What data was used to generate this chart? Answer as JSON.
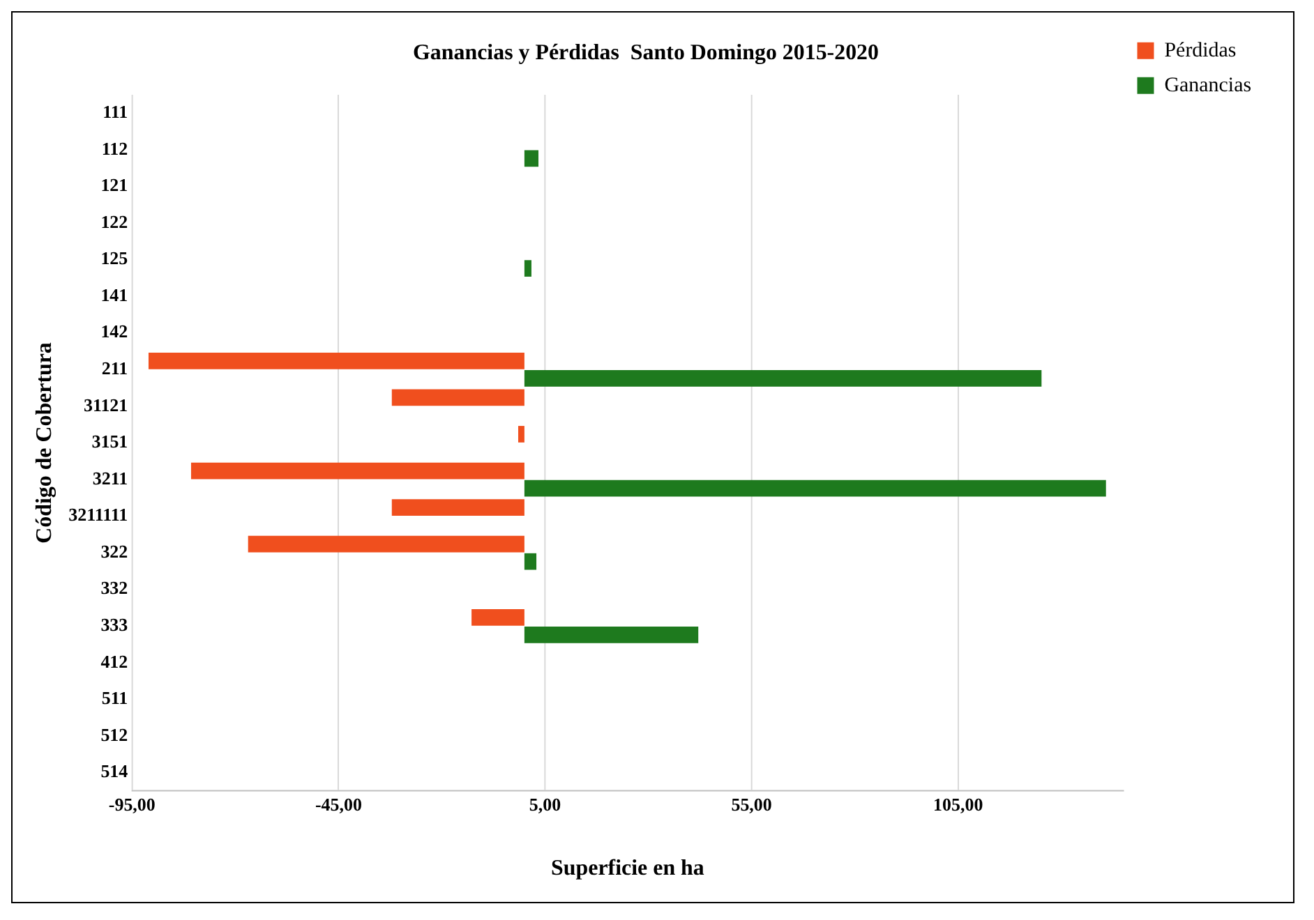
{
  "chart_data": {
    "type": "bar",
    "orientation": "horizontal",
    "title": "Ganancias y Pérdidas  Santo Domingo 2015-2020",
    "xlabel": "Superficie en ha",
    "ylabel": "Código de Cobertura",
    "categories": [
      "111",
      "112",
      "121",
      "122",
      "125",
      "141",
      "142",
      "211",
      "31121",
      "3151",
      "3211",
      "3211111",
      "322",
      "332",
      "333",
      "412",
      "511",
      "512",
      "514"
    ],
    "series": [
      {
        "name": "Pérdidas",
        "color": "#f04f1e",
        "values": [
          null,
          null,
          null,
          null,
          null,
          null,
          null,
          -91.0,
          -32.1,
          -1.5,
          -80.7,
          -32.1,
          -66.9,
          null,
          -12.8,
          null,
          null,
          null,
          null
        ]
      },
      {
        "name": "Ganancias",
        "color": "#1e7a1e",
        "values": [
          null,
          3.4,
          null,
          null,
          1.7,
          null,
          null,
          125.2,
          null,
          null,
          140.8,
          null,
          2.9,
          null,
          42.1,
          null,
          null,
          null,
          null
        ]
      }
    ],
    "xlim": [
      -95,
      145
    ],
    "xticks": [
      {
        "value": -95,
        "label": "-95,00"
      },
      {
        "value": -45,
        "label": "-45,00"
      },
      {
        "value": 5,
        "label": "5,00"
      },
      {
        "value": 55,
        "label": "55,00"
      },
      {
        "value": 105,
        "label": "105,00"
      }
    ],
    "grid": "x",
    "legend": "right"
  }
}
